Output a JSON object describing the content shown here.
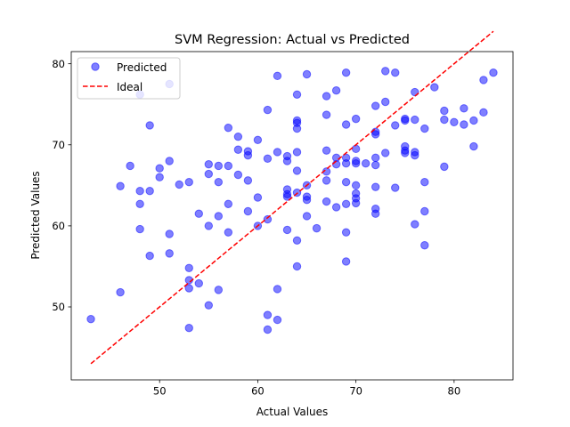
{
  "chart_data": {
    "type": "scatter",
    "title": "SVM Regression: Actual vs Predicted",
    "xlabel": "Actual Values",
    "ylabel": "Predicted Values",
    "xlim": [
      41.0,
      86.0
    ],
    "ylim": [
      41.0,
      81.5
    ],
    "xticks": [
      50,
      60,
      70,
      80
    ],
    "yticks": [
      50,
      60,
      70,
      80
    ],
    "grid": false,
    "legend": {
      "placement": "upper-left",
      "entries": [
        "Predicted",
        "Ideal"
      ]
    },
    "series": [
      {
        "name": "Predicted",
        "kind": "scatter",
        "color": "#0000ff",
        "alpha": 0.5,
        "points": [
          [
            43,
            48.5
          ],
          [
            46,
            51.8
          ],
          [
            46,
            64.9
          ],
          [
            47,
            67.4
          ],
          [
            48,
            76.2
          ],
          [
            48,
            64.3
          ],
          [
            48,
            62.7
          ],
          [
            48,
            59.6
          ],
          [
            49,
            72.4
          ],
          [
            49,
            64.3
          ],
          [
            49,
            56.3
          ],
          [
            50,
            67.1
          ],
          [
            50,
            66.0
          ],
          [
            51,
            77.5
          ],
          [
            51,
            68.0
          ],
          [
            51,
            59.0
          ],
          [
            51,
            56.6
          ],
          [
            52,
            65.1
          ],
          [
            53,
            65.4
          ],
          [
            53,
            54.8
          ],
          [
            53,
            53.3
          ],
          [
            53,
            52.3
          ],
          [
            53,
            47.4
          ],
          [
            54,
            61.5
          ],
          [
            54,
            52.9
          ],
          [
            55,
            67.6
          ],
          [
            55,
            66.4
          ],
          [
            55,
            60.0
          ],
          [
            55,
            50.2
          ],
          [
            56,
            67.4
          ],
          [
            56,
            65.4
          ],
          [
            56,
            61.2
          ],
          [
            56,
            52.1
          ],
          [
            57,
            72.1
          ],
          [
            57,
            67.4
          ],
          [
            57,
            62.7
          ],
          [
            57,
            59.2
          ],
          [
            58,
            71.0
          ],
          [
            58,
            69.4
          ],
          [
            58,
            66.3
          ],
          [
            59,
            69.2
          ],
          [
            59,
            68.7
          ],
          [
            59,
            65.6
          ],
          [
            59,
            61.8
          ],
          [
            60,
            70.6
          ],
          [
            60,
            63.5
          ],
          [
            60,
            60.0
          ],
          [
            61,
            74.3
          ],
          [
            61,
            68.3
          ],
          [
            61,
            60.8
          ],
          [
            61,
            49.0
          ],
          [
            61,
            47.2
          ],
          [
            62,
            78.5
          ],
          [
            62,
            69.1
          ],
          [
            62,
            52.2
          ],
          [
            62,
            48.4
          ],
          [
            63,
            68.6
          ],
          [
            63,
            68.0
          ],
          [
            63,
            64.5
          ],
          [
            63,
            63.9
          ],
          [
            63,
            63.6
          ],
          [
            63,
            59.5
          ],
          [
            64,
            76.2
          ],
          [
            64,
            73.0
          ],
          [
            64,
            72.7
          ],
          [
            64,
            72.0
          ],
          [
            64,
            69.1
          ],
          [
            64,
            66.8
          ],
          [
            64,
            64.1
          ],
          [
            64,
            58.2
          ],
          [
            64,
            55.0
          ],
          [
            65,
            78.7
          ],
          [
            65,
            65.0
          ],
          [
            65,
            63.6
          ],
          [
            65,
            63.2
          ],
          [
            65,
            61.2
          ],
          [
            66,
            59.7
          ],
          [
            67,
            76.0
          ],
          [
            67,
            73.7
          ],
          [
            67,
            69.3
          ],
          [
            67,
            66.7
          ],
          [
            67,
            65.6
          ],
          [
            67,
            63.0
          ],
          [
            68,
            76.7
          ],
          [
            68,
            68.4
          ],
          [
            68,
            67.6
          ],
          [
            68,
            62.3
          ],
          [
            69,
            78.9
          ],
          [
            69,
            72.5
          ],
          [
            69,
            68.4
          ],
          [
            69,
            67.7
          ],
          [
            69,
            65.4
          ],
          [
            69,
            62.7
          ],
          [
            69,
            59.2
          ],
          [
            69,
            55.6
          ],
          [
            70,
            73.2
          ],
          [
            70,
            69.5
          ],
          [
            70,
            68.0
          ],
          [
            70,
            67.7
          ],
          [
            70,
            65.0
          ],
          [
            70,
            64.0
          ],
          [
            70,
            63.4
          ],
          [
            70,
            62.8
          ],
          [
            71,
            67.7
          ],
          [
            72,
            74.8
          ],
          [
            72,
            71.6
          ],
          [
            72,
            71.3
          ],
          [
            72,
            68.4
          ],
          [
            72,
            67.5
          ],
          [
            72,
            64.8
          ],
          [
            72,
            62.1
          ],
          [
            72,
            61.5
          ],
          [
            73,
            79.1
          ],
          [
            73,
            75.3
          ],
          [
            73,
            69.0
          ],
          [
            74,
            78.9
          ],
          [
            74,
            72.4
          ],
          [
            74,
            64.7
          ],
          [
            75,
            73.2
          ],
          [
            75,
            73.0
          ],
          [
            75,
            69.8
          ],
          [
            75,
            69.3
          ],
          [
            75,
            69.0
          ],
          [
            76,
            76.5
          ],
          [
            76,
            73.1
          ],
          [
            76,
            69.1
          ],
          [
            76,
            68.7
          ],
          [
            76,
            60.2
          ],
          [
            77,
            72.0
          ],
          [
            77,
            65.4
          ],
          [
            77,
            61.8
          ],
          [
            77,
            57.6
          ],
          [
            78,
            77.1
          ],
          [
            79,
            74.2
          ],
          [
            79,
            73.1
          ],
          [
            79,
            67.3
          ],
          [
            80,
            72.8
          ],
          [
            81,
            74.5
          ],
          [
            81,
            72.5
          ],
          [
            82,
            73.0
          ],
          [
            82,
            69.8
          ],
          [
            83,
            78.0
          ],
          [
            83,
            74.0
          ],
          [
            84,
            78.9
          ]
        ]
      },
      {
        "name": "Ideal",
        "kind": "line",
        "color": "#ff0000",
        "style": "dashed",
        "x": [
          43,
          84
        ],
        "y": [
          43,
          84
        ]
      }
    ]
  }
}
